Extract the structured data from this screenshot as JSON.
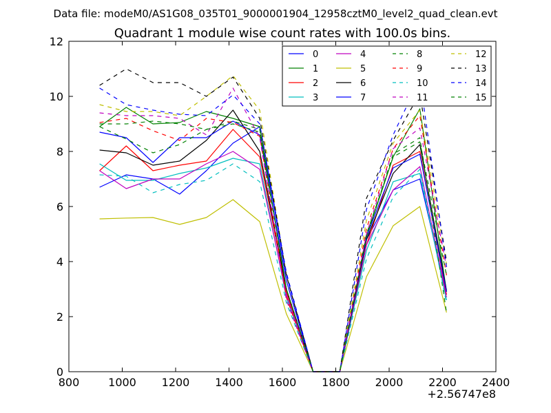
{
  "header": {
    "data_file_label": "Data file: modeM0/AS1G08_035T01_9000001904_12958cztM0_level2_quad_clean.evt"
  },
  "chart_data": {
    "type": "line",
    "title": "Quadrant 1 module wise count rates with 100.0s bins.",
    "xlabel": "",
    "ylabel": "",
    "x_offset_label": "+2.56747e8",
    "xlim": [
      800,
      2400
    ],
    "ylim": [
      0,
      12
    ],
    "x_ticks": [
      800,
      1000,
      1200,
      1400,
      1600,
      1800,
      2000,
      2200,
      2400
    ],
    "y_ticks": [
      0,
      2,
      4,
      6,
      8,
      10,
      12
    ],
    "grid": false,
    "legend_position": "top-right",
    "x": [
      915,
      1015,
      1115,
      1215,
      1315,
      1415,
      1515,
      1615,
      1715,
      1815,
      1915,
      2015,
      2115,
      2215
    ],
    "series": [
      {
        "name": "0",
        "color": "#0000ff",
        "dash": "solid",
        "values": [
          6.7,
          7.15,
          7.0,
          6.45,
          7.3,
          8.3,
          8.9,
          3.5,
          0,
          0,
          4.8,
          6.6,
          7.0,
          2.8
        ]
      },
      {
        "name": "1",
        "color": "#008000",
        "dash": "solid",
        "values": [
          8.9,
          9.6,
          9.0,
          9.05,
          9.45,
          9.2,
          8.9,
          3.0,
          0,
          0,
          4.9,
          7.8,
          9.55,
          2.9
        ]
      },
      {
        "name": "2",
        "color": "#ff0000",
        "dash": "solid",
        "values": [
          7.3,
          8.2,
          7.3,
          7.5,
          7.65,
          8.8,
          7.8,
          2.9,
          0,
          0,
          4.6,
          7.5,
          8.0,
          2.8
        ]
      },
      {
        "name": "3",
        "color": "#00bfbf",
        "dash": "solid",
        "values": [
          7.55,
          6.95,
          6.95,
          7.2,
          7.4,
          7.75,
          7.55,
          2.7,
          0,
          0,
          4.4,
          6.9,
          7.2,
          2.6
        ]
      },
      {
        "name": "4",
        "color": "#bf00bf",
        "dash": "solid",
        "values": [
          7.3,
          6.65,
          7.0,
          7.0,
          7.55,
          8.0,
          7.35,
          2.8,
          0,
          0,
          4.6,
          6.6,
          7.45,
          2.7
        ]
      },
      {
        "name": "5",
        "color": "#bfbf00",
        "dash": "solid",
        "values": [
          5.55,
          5.58,
          5.6,
          5.35,
          5.6,
          6.25,
          5.45,
          2.1,
          0,
          0,
          3.45,
          5.3,
          6.0,
          2.15
        ]
      },
      {
        "name": "6",
        "color": "#000000",
        "dash": "solid",
        "values": [
          8.05,
          7.95,
          7.5,
          7.65,
          8.4,
          9.5,
          8.0,
          3.0,
          0,
          0,
          4.8,
          7.2,
          8.25,
          2.95
        ]
      },
      {
        "name": "7",
        "color": "#0000ff",
        "dash": "solid",
        "values": [
          8.7,
          8.5,
          7.6,
          8.5,
          8.5,
          9.1,
          8.6,
          3.3,
          0,
          0,
          4.9,
          7.4,
          7.9,
          2.9
        ]
      },
      {
        "name": "8",
        "color": "#008000",
        "dash": "dashed",
        "values": [
          8.9,
          8.45,
          7.95,
          8.25,
          8.8,
          9.1,
          8.8,
          3.0,
          0,
          0,
          4.9,
          7.9,
          8.5,
          2.15
        ]
      },
      {
        "name": "9",
        "color": "#ff0000",
        "dash": "dashed",
        "values": [
          9.05,
          9.2,
          8.75,
          8.4,
          9.2,
          9.05,
          8.55,
          2.7,
          0,
          0,
          5.2,
          8.1,
          9.3,
          3.5
        ]
      },
      {
        "name": "10",
        "color": "#00bfbf",
        "dash": "dashed",
        "values": [
          7.15,
          7.1,
          6.5,
          6.8,
          6.95,
          7.55,
          6.9,
          2.5,
          0,
          0,
          4.1,
          6.35,
          7.35,
          2.5
        ]
      },
      {
        "name": "11",
        "color": "#bf00bf",
        "dash": "dashed",
        "values": [
          9.4,
          9.3,
          9.3,
          9.2,
          8.6,
          10.3,
          8.5,
          2.6,
          0,
          0,
          5.0,
          8.1,
          8.85,
          3.8
        ]
      },
      {
        "name": "12",
        "color": "#bfbf00",
        "dash": "dashed",
        "values": [
          9.7,
          9.45,
          9.45,
          9.3,
          10.0,
          10.75,
          9.5,
          3.5,
          0,
          0,
          5.5,
          8.3,
          9.5,
          3.9
        ]
      },
      {
        "name": "13",
        "color": "#000000",
        "dash": "dashed",
        "values": [
          10.4,
          11.0,
          10.5,
          10.5,
          10.0,
          10.7,
          9.2,
          3.5,
          0,
          0,
          6.3,
          8.4,
          10.1,
          4.0
        ]
      },
      {
        "name": "14",
        "color": "#0000ff",
        "dash": "dashed",
        "values": [
          10.3,
          9.7,
          9.5,
          9.35,
          9.3,
          10.05,
          9.0,
          3.6,
          0,
          0,
          5.9,
          8.6,
          10.65,
          3.8
        ]
      },
      {
        "name": "15",
        "color": "#008000",
        "dash": "dashed",
        "values": [
          9.0,
          9.0,
          9.1,
          9.0,
          8.8,
          9.0,
          8.7,
          3.0,
          0,
          0,
          5.0,
          7.8,
          8.35,
          3.5
        ]
      }
    ]
  }
}
